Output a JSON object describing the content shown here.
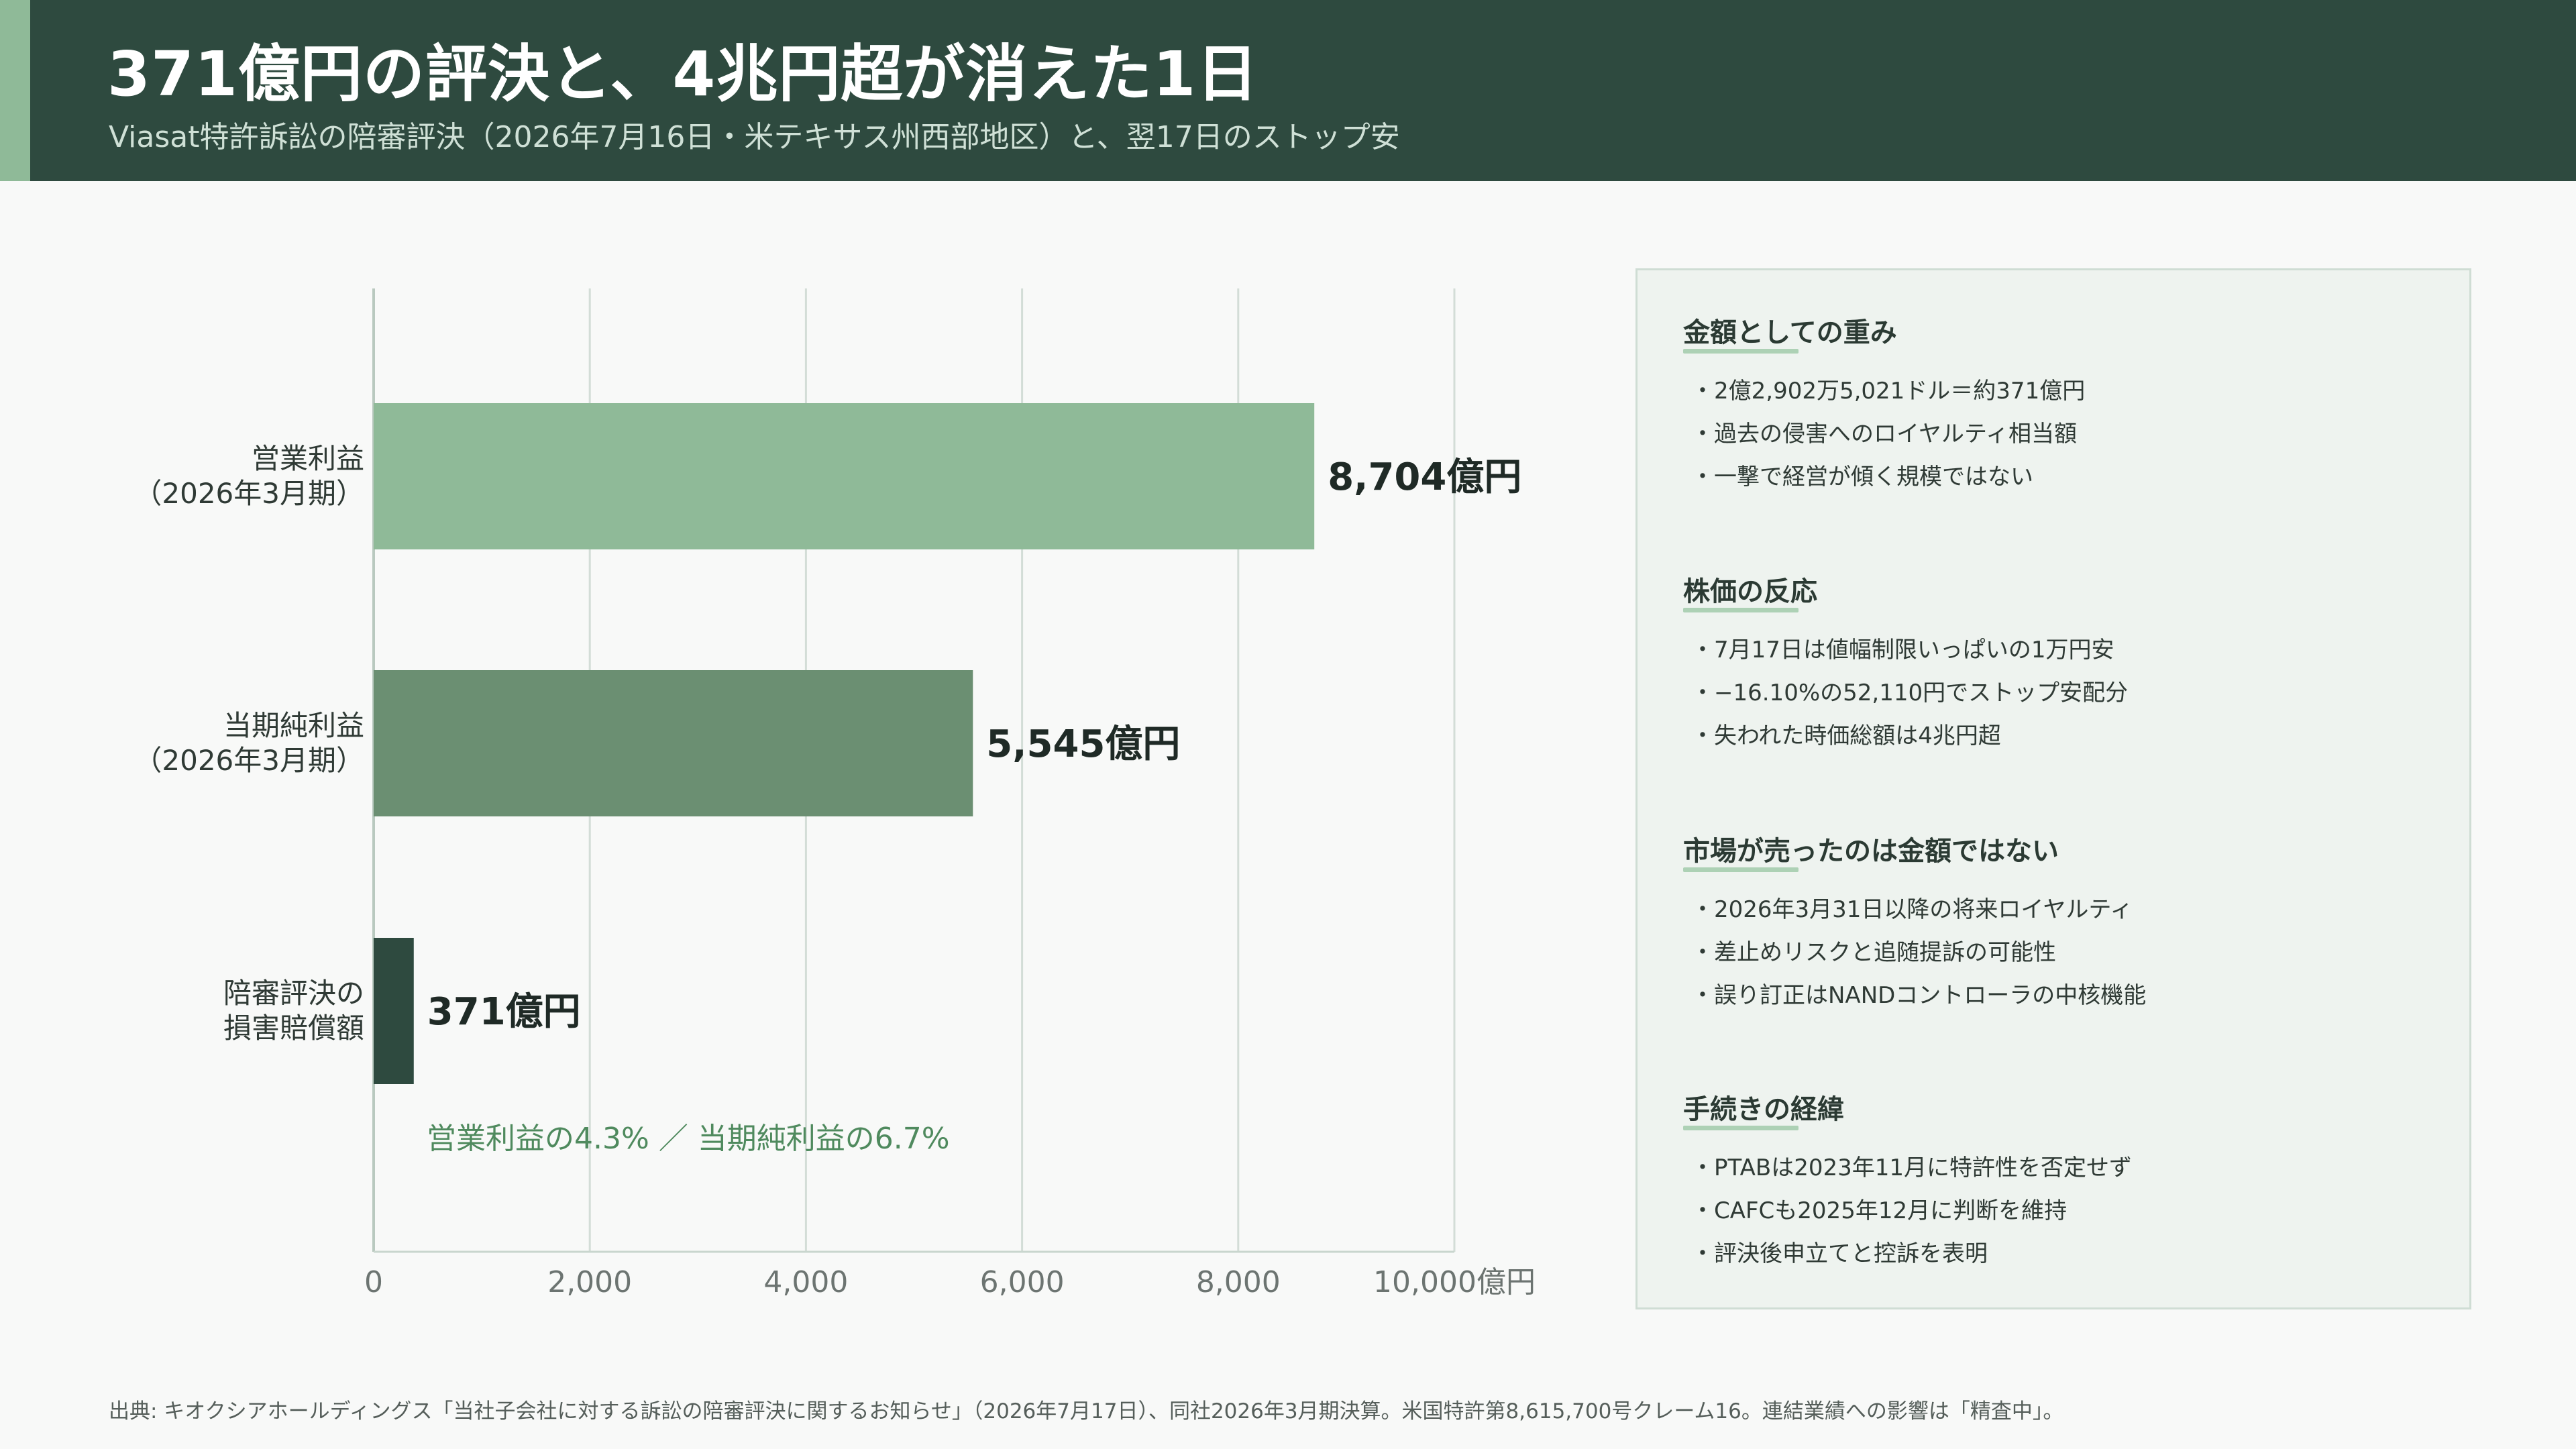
{
  "header": {
    "title": "371億円の評決と、4兆円超が消えた1日",
    "subtitle": "Viasat特許訴訟の陪審評決（2026年7月16日・米テキサス州西部地区）と、翌17日のストップ安"
  },
  "chart_data": {
    "type": "bar",
    "orientation": "horizontal",
    "categories": [
      [
        "営業利益",
        "（2026年3月期）"
      ],
      [
        "当期純利益",
        "（2026年3月期）"
      ],
      [
        "陪審評決の",
        "損害賠償額"
      ]
    ],
    "values": [
      8704,
      5545,
      371
    ],
    "value_labels": [
      "8,704億円",
      "5,545億円",
      "371億円"
    ],
    "colors": [
      "#8fba98",
      "#6b8f72",
      "#2e4a3f"
    ],
    "xlim": [
      0,
      10000
    ],
    "xticks": [
      0,
      2000,
      4000,
      6000,
      8000,
      10000
    ],
    "xtick_labels": [
      "0",
      "2,000",
      "4,000",
      "6,000",
      "8,000",
      "10,000億円"
    ],
    "grid": true,
    "annotation": "営業利益の4.3% ／ 当期純利益の6.7%",
    "annotation_color": "#4f8a5e"
  },
  "sidebar": {
    "sections": [
      {
        "title": "金額としての重み",
        "items": [
          "2億2,902万5,021ドル＝約371億円",
          "過去の侵害へのロイヤルティ相当額",
          "一撃で経営が傾く規模ではない"
        ]
      },
      {
        "title": "株価の反応",
        "items": [
          "7月17日は値幅制限いっぱいの1万円安",
          "−16.10%の52,110円でストップ安配分",
          "失われた時価総額は4兆円超"
        ]
      },
      {
        "title": "市場が売ったのは金額ではない",
        "items": [
          "2026年3月31日以降の将来ロイヤルティ",
          "差止めリスクと追随提訴の可能性",
          "誤り訂正はNANDコントローラの中核機能"
        ]
      },
      {
        "title": "手続きの経緯",
        "items": [
          "PTABは2023年11月に特許性を否定せず",
          "CAFCも2025年12月に判断を維持",
          "評決後申立てと控訴を表明"
        ]
      }
    ]
  },
  "footer": {
    "source": "出典: キオクシアホールディングス「当社子会社に対する訴訟の陪審評決に関するお知らせ」（2026年7月17日）、同社2026年3月期決算。米国特許第8,615,700号クレーム16。連結業績への影響は「精査中」。"
  }
}
